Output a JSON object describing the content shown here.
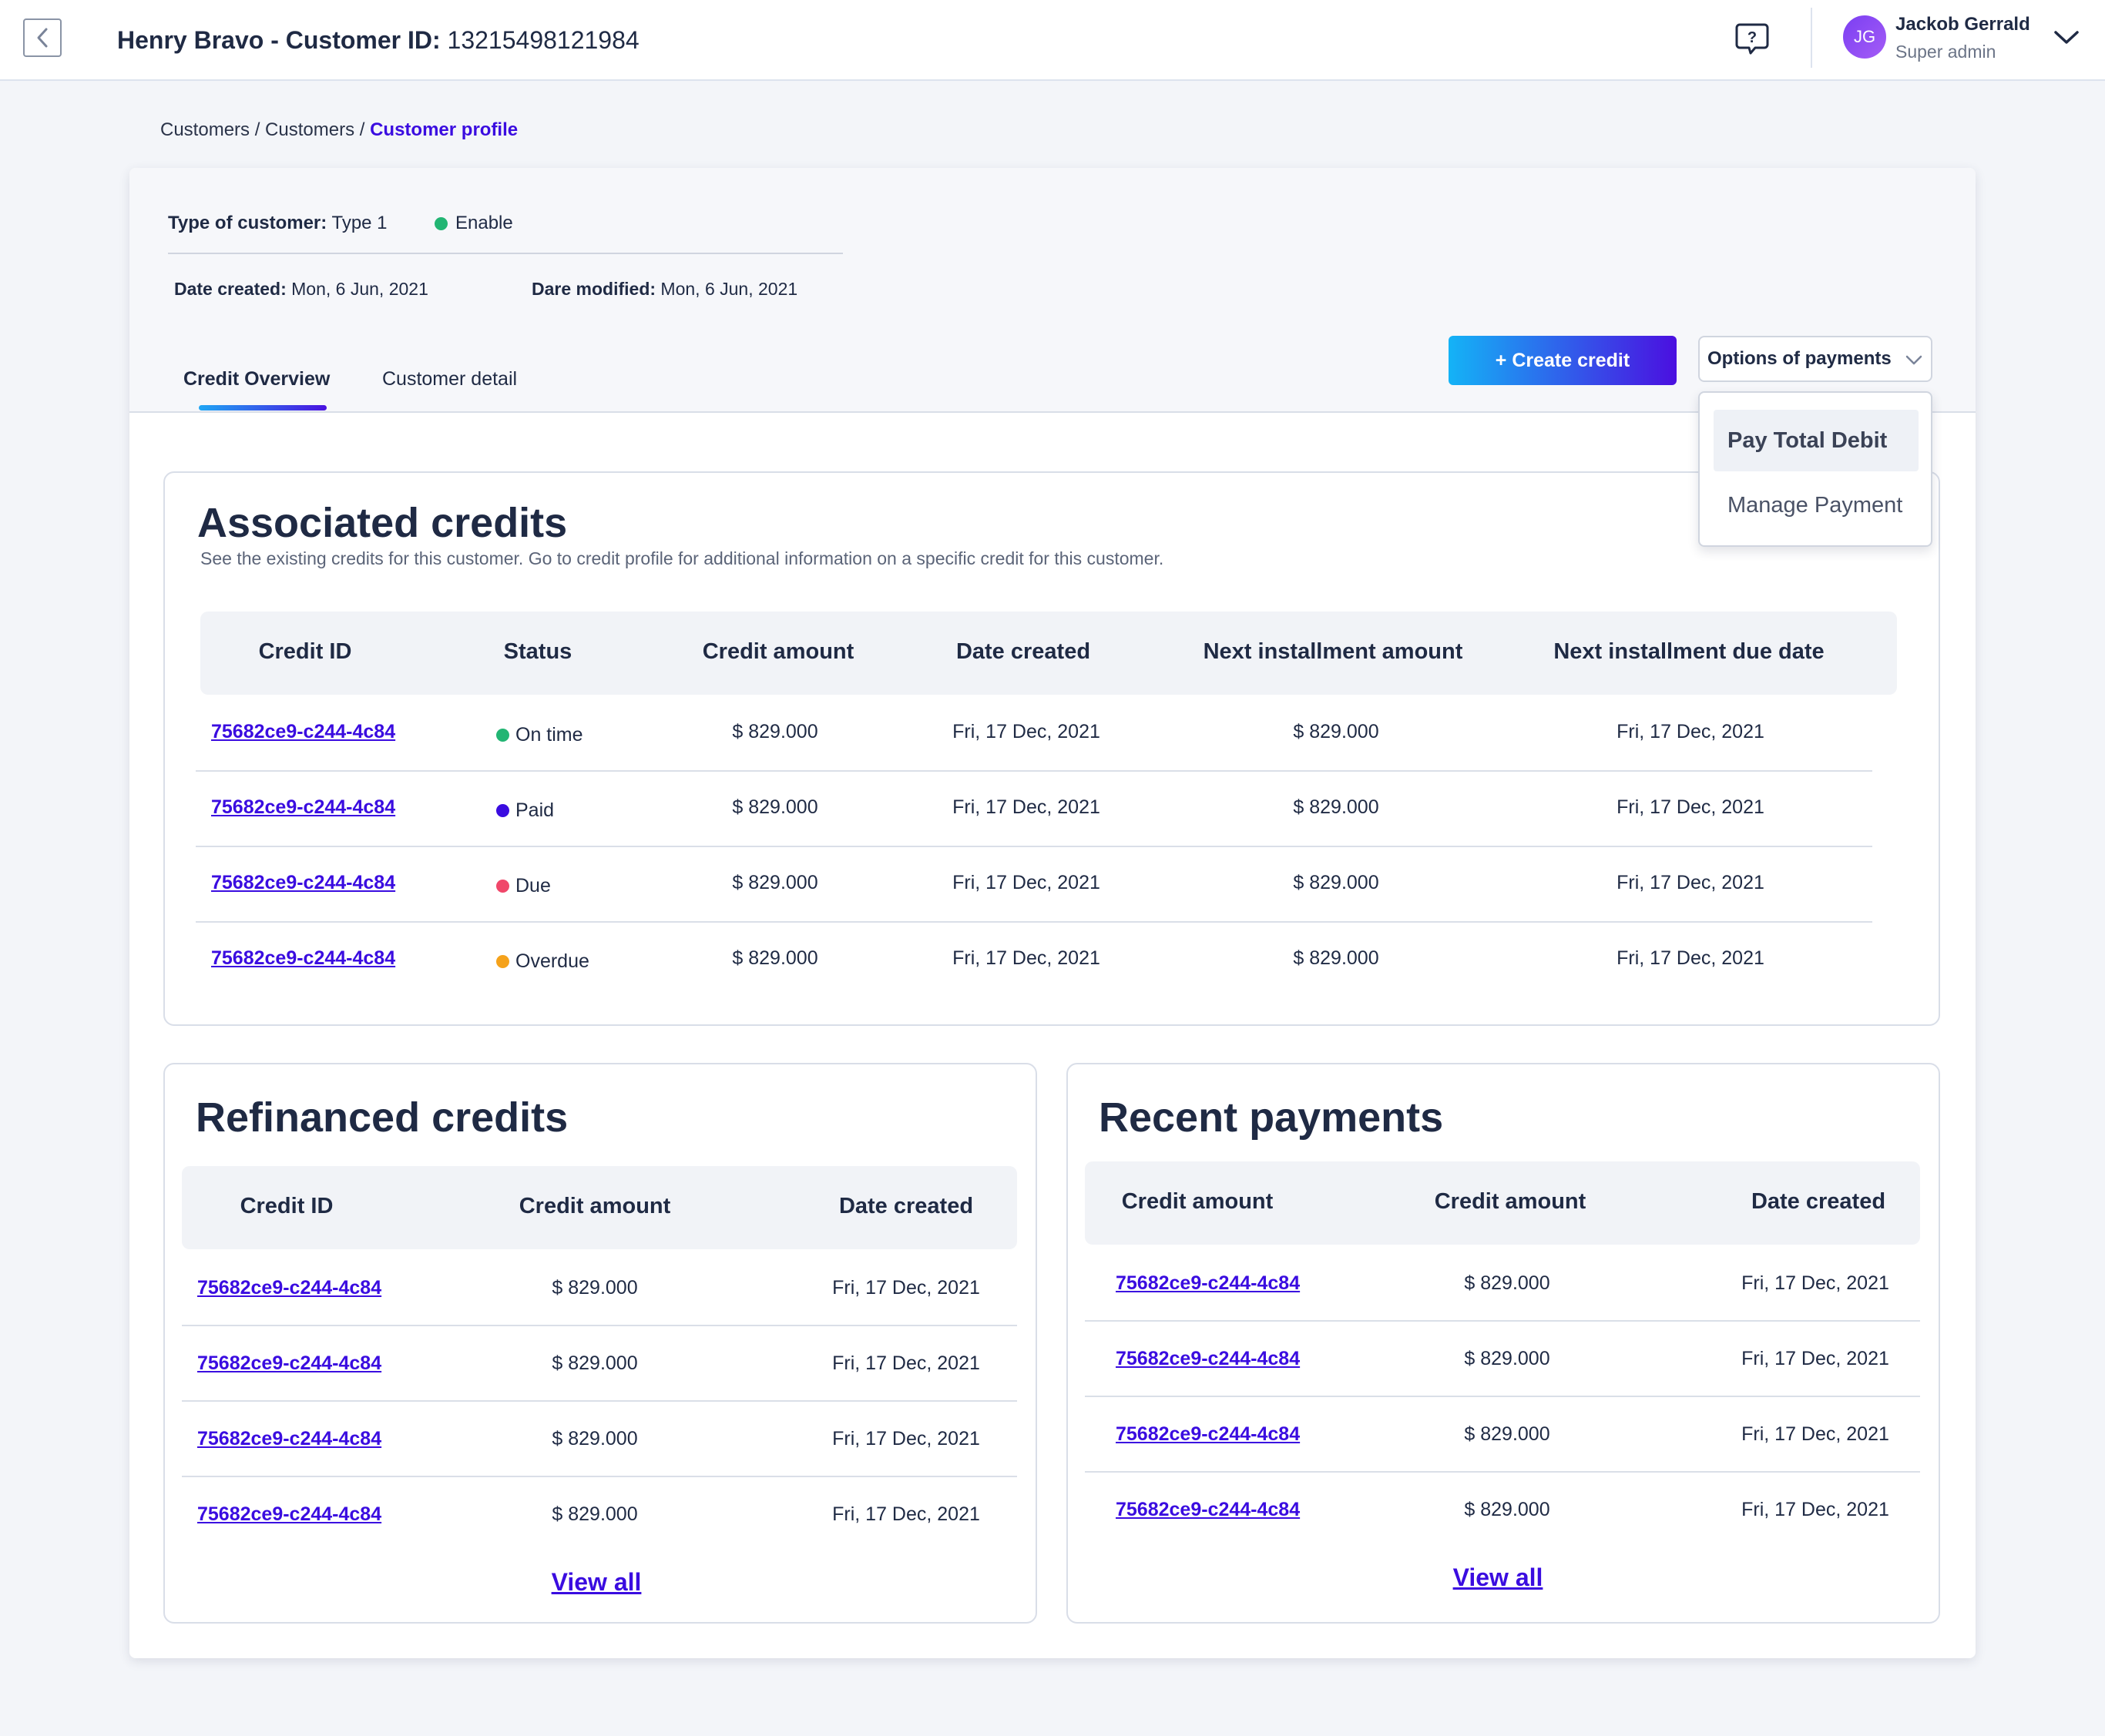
{
  "header": {
    "title_bold": "Henry Bravo - Customer ID:",
    "customer_id": "13215498121984",
    "user": {
      "initials": "JG",
      "name": "Jackob Gerrald",
      "role": "Super admin"
    }
  },
  "breadcrumb": {
    "items": [
      "Customers",
      "Customers"
    ],
    "separator": "/",
    "current": "Customer profile"
  },
  "customer_meta": {
    "type_label": "Type of customer:",
    "type_value": "Type 1",
    "status": "Enable",
    "status_color": "#22B573",
    "date_created_label": "Date created:",
    "date_created": "Mon, 6 Jun, 2021",
    "date_modified_label": "Dare modified:",
    "date_modified": "Mon, 6 Jun, 2021"
  },
  "tabs": [
    {
      "label": "Credit Overview",
      "active": true
    },
    {
      "label": "Customer detail",
      "active": false
    }
  ],
  "actions": {
    "create_credit": "+ Create credit",
    "options_payments": "Options of payments",
    "options_menu": [
      "Pay Total Debit",
      "Manage Payment"
    ]
  },
  "associated": {
    "title": "Associated credits",
    "subtitle": "See the existing credits for this customer. Go to credit profile for additional information on a specific credit for this customer.",
    "columns": [
      "Credit ID",
      "Status",
      "Credit amount",
      "Date created",
      "Next installment amount",
      "Next installment due date"
    ],
    "rows": [
      {
        "id": "75682ce9-c244-4c84",
        "status": "On time",
        "status_color": "#22B573",
        "amount": "$ 829.000",
        "date": "Fri, 17 Dec, 2021",
        "next_amount": "$ 829.000",
        "next_date": "Fri, 17 Dec, 2021"
      },
      {
        "id": "75682ce9-c244-4c84",
        "status": "Paid",
        "status_color": "#3A0CE0",
        "amount": "$ 829.000",
        "date": "Fri, 17 Dec, 2021",
        "next_amount": "$ 829.000",
        "next_date": "Fri, 17 Dec, 2021"
      },
      {
        "id": "75682ce9-c244-4c84",
        "status": "Due",
        "status_color": "#F0476A",
        "amount": "$ 829.000",
        "date": "Fri, 17 Dec, 2021",
        "next_amount": "$ 829.000",
        "next_date": "Fri, 17 Dec, 2021"
      },
      {
        "id": "75682ce9-c244-4c84",
        "status": "Overdue",
        "status_color": "#F5A21B",
        "amount": "$ 829.000",
        "date": "Fri, 17 Dec, 2021",
        "next_amount": "$ 829.000",
        "next_date": "Fri, 17 Dec, 2021"
      }
    ]
  },
  "refinanced": {
    "title": "Refinanced credits",
    "columns": [
      "Credit ID",
      "Credit amount",
      "Date created"
    ],
    "rows": [
      {
        "id": "75682ce9-c244-4c84",
        "amount": "$ 829.000",
        "date": "Fri, 17 Dec, 2021"
      },
      {
        "id": "75682ce9-c244-4c84",
        "amount": "$ 829.000",
        "date": "Fri, 17 Dec, 2021"
      },
      {
        "id": "75682ce9-c244-4c84",
        "amount": "$ 829.000",
        "date": "Fri, 17 Dec, 2021"
      },
      {
        "id": "75682ce9-c244-4c84",
        "amount": "$ 829.000",
        "date": "Fri, 17 Dec, 2021"
      }
    ],
    "view_all": "View all"
  },
  "recent_payments": {
    "title": "Recent payments",
    "columns": [
      "Credit amount",
      "Credit amount",
      "Date created"
    ],
    "rows": [
      {
        "id": "75682ce9-c244-4c84",
        "amount": "$ 829.000",
        "date": "Fri, 17 Dec, 2021"
      },
      {
        "id": "75682ce9-c244-4c84",
        "amount": "$ 829.000",
        "date": "Fri, 17 Dec, 2021"
      },
      {
        "id": "75682ce9-c244-4c84",
        "amount": "$ 829.000",
        "date": "Fri, 17 Dec, 2021"
      },
      {
        "id": "75682ce9-c244-4c84",
        "amount": "$ 829.000",
        "date": "Fri, 17 Dec, 2021"
      }
    ],
    "view_all": "View all"
  },
  "colors": {
    "accent": "#3A0CE0",
    "gradient_start": "#14B3F6",
    "gradient_end": "#4B0FE0",
    "page_bg": "#F3F5F9"
  },
  "icons": {
    "back": "chevron-left-icon",
    "help": "help-chat-icon",
    "user_menu": "chevron-down-icon",
    "options": "chevron-down-icon",
    "status_dot": "dot-icon"
  }
}
